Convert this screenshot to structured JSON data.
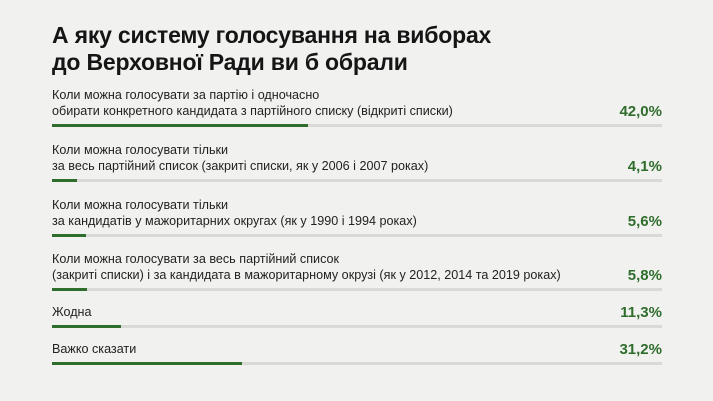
{
  "title_lines": [
    "А яку систему голосування на виборах",
    "до Верховної Ради ви б обрали"
  ],
  "chart_data": {
    "type": "bar",
    "orientation": "horizontal",
    "unit": "%",
    "xlim": [
      0,
      100
    ],
    "categories": [
      [
        "Коли можна голосувати за партію і одночасно",
        "обирати конкретного кандидата з партійного списку (відкриті списки)"
      ],
      [
        "Коли можна голосувати тільки",
        "за весь партійний список (закриті списки, як у 2006 і 2007 роках)"
      ],
      [
        "Коли можна голосувати тільки",
        "за кандидатів у мажоритарних округах (як у 1990 і 1994 роках)"
      ],
      [
        "Коли можна голосувати за весь партійний список",
        "(закриті списки) і за кандидата в мажоритарному окрузі (як у 2012, 2014 та 2019 роках)"
      ],
      [
        "Жодна"
      ],
      [
        "Важко сказати"
      ]
    ],
    "values": [
      42.0,
      4.1,
      5.6,
      5.8,
      11.3,
      31.2
    ],
    "value_labels": [
      "42,0%",
      "4,1%",
      "5,6%",
      "5,8%",
      "11,3%",
      "31,2%"
    ],
    "colors": {
      "bar": "#2f6d2d",
      "track": "#d9d9d5",
      "value_text": "#2f6d2d"
    }
  }
}
